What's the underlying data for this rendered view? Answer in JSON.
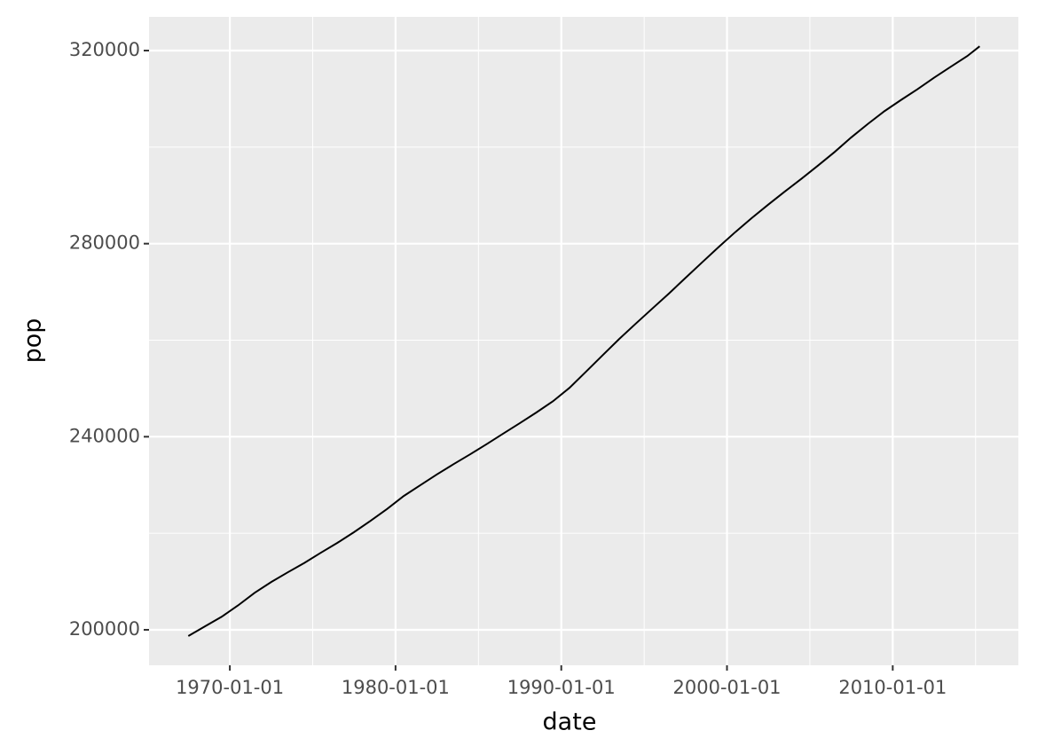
{
  "chart_data": {
    "type": "line",
    "x_label": "date",
    "y_label": "pop",
    "x": [
      "1967-07-01",
      "1968-07-01",
      "1969-07-01",
      "1970-07-01",
      "1971-07-01",
      "1972-07-01",
      "1973-07-01",
      "1974-07-01",
      "1975-07-01",
      "1976-07-01",
      "1977-07-01",
      "1978-07-01",
      "1979-07-01",
      "1980-07-01",
      "1981-07-01",
      "1982-07-01",
      "1983-07-01",
      "1984-07-01",
      "1985-07-01",
      "1986-07-01",
      "1987-07-01",
      "1988-07-01",
      "1989-07-01",
      "1990-07-01",
      "1991-07-01",
      "1992-07-01",
      "1993-07-01",
      "1994-07-01",
      "1995-07-01",
      "1996-07-01",
      "1997-07-01",
      "1998-07-01",
      "1999-07-01",
      "2000-07-01",
      "2001-07-01",
      "2002-07-01",
      "2003-07-01",
      "2004-07-01",
      "2005-07-01",
      "2006-07-01",
      "2007-07-01",
      "2008-07-01",
      "2009-07-01",
      "2010-07-01",
      "2011-07-01",
      "2012-07-01",
      "2013-07-01",
      "2014-07-01",
      "2015-04-01"
    ],
    "series": [
      {
        "name": "pop",
        "color": "#000000",
        "values": [
          198712,
          200706,
          202677,
          205052,
          207661,
          209896,
          211909,
          213854,
          215973,
          218035,
          220239,
          222585,
          225055,
          227726,
          229966,
          232188,
          234307,
          236348,
          238466,
          240651,
          242804,
          245021,
          247342,
          250132,
          253493,
          256894,
          260255,
          263436,
          266557,
          269667,
          272912,
          276115,
          279295,
          282385,
          285309,
          288105,
          290820,
          293463,
          296186,
          298996,
          302004,
          304798,
          307439,
          309757,
          312000,
          314385,
          316630,
          318857,
          320887
        ]
      }
    ],
    "xlim": [
      "1965-02-15",
      "2017-08-01"
    ],
    "xticks": [
      "1970-01-01",
      "1980-01-01",
      "1990-01-01",
      "2000-01-01",
      "2010-01-01"
    ],
    "x_minor_ticks": [
      "1975-01-01",
      "1985-01-01",
      "1995-01-01",
      "2005-01-01",
      "2015-01-01"
    ],
    "ylim": [
      192647,
      326985
    ],
    "yticks": [
      200000,
      240000,
      280000,
      320000
    ],
    "y_minor_ticks": [
      220000,
      260000,
      300000
    ],
    "grid": true
  }
}
